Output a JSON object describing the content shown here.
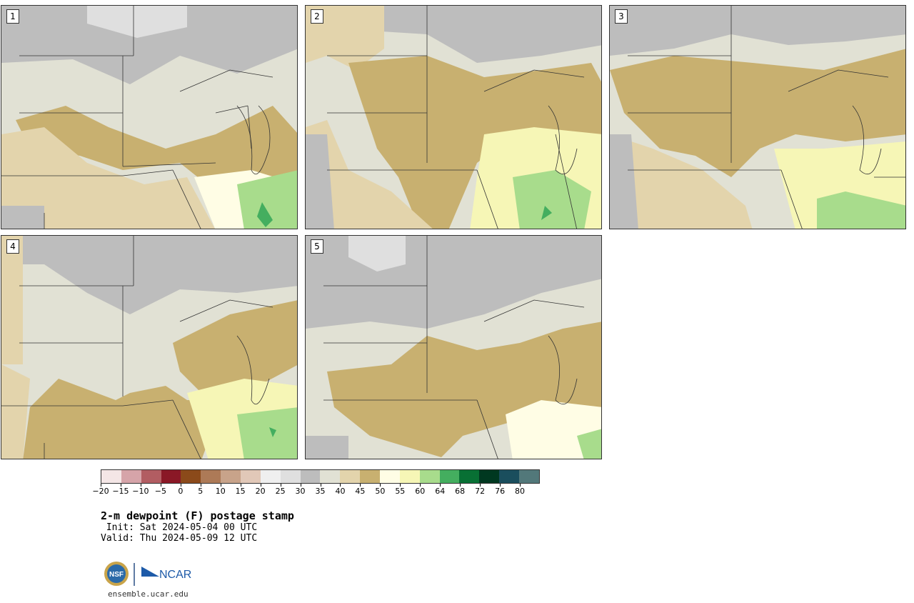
{
  "panels": [
    {
      "label": "1",
      "tone": "#c8b070"
    },
    {
      "label": "2",
      "tone": "#c8b070"
    },
    {
      "label": "3",
      "tone": "#c8b070"
    },
    {
      "label": "4",
      "tone": "#c8b070"
    },
    {
      "label": "5",
      "tone": "#c8b070"
    }
  ],
  "colorbar": {
    "colors": [
      "#f4e6e6",
      "#d6a4a9",
      "#b25d62",
      "#8a1826",
      "#8b4a1a",
      "#ad7a57",
      "#c8a38a",
      "#e1c8b8",
      "#efefef",
      "#dfdfdf",
      "#bdbdbd",
      "#e1e1d4",
      "#e3d4ac",
      "#c8b070",
      "#fffde5",
      "#f6f6b6",
      "#a8dc8c",
      "#44ae5f",
      "#087034",
      "#003820",
      "#1a4e5d",
      "#52787a"
    ],
    "ticks": [
      "−20",
      "−15",
      "−10",
      "−5",
      "0",
      "5",
      "10",
      "15",
      "20",
      "25",
      "30",
      "35",
      "40",
      "45",
      "50",
      "55",
      "60",
      "64",
      "68",
      "72",
      "76",
      "80"
    ]
  },
  "title": "2-m dewpoint (F) postage stamp",
  "init": " Init: Sat 2024-05-04 00 UTC",
  "valid": "Valid: Thu 2024-05-09 12 UTC",
  "logos": {
    "nsf": "NSF",
    "ncar": "NCAR"
  },
  "url": "ensemble.ucar.edu"
}
